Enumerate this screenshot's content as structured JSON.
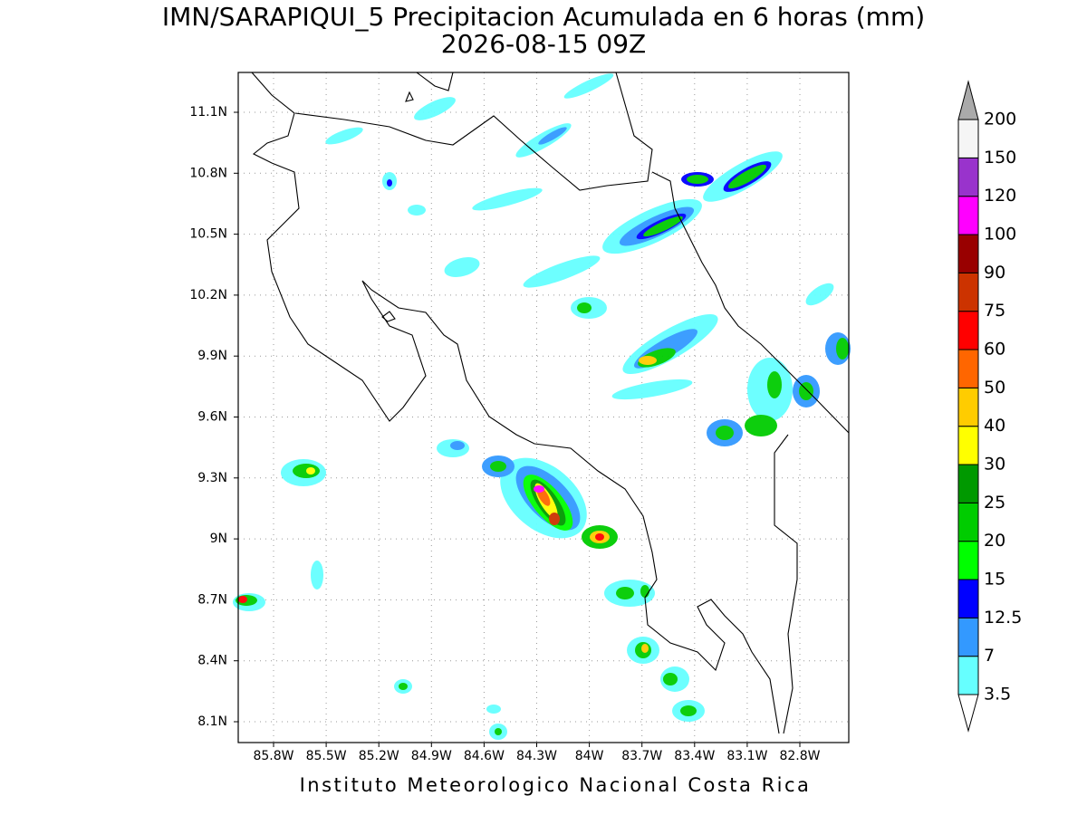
{
  "title": "IMN/SARAPIQUI_5 Precipitacion Acumulada en 6 horas (mm)",
  "subtitle": "2026-08-15 09Z",
  "map": {
    "lat_labels": [
      "11.1N",
      "10.8N",
      "10.5N",
      "10.2N",
      "9.9N",
      "9.6N",
      "9.3N",
      "9N",
      "8.7N",
      "8.4N",
      "8.1N"
    ],
    "lon_labels": [
      "85.8W",
      "85.5W",
      "85.2W",
      "84.9W",
      "84.6W",
      "84.3W",
      "84W",
      "83.7W",
      "83.4W",
      "83.1W",
      "82.8W"
    ]
  },
  "colorbar": {
    "labels": [
      "3.5",
      "7",
      "12.5",
      "15",
      "20",
      "25",
      "30",
      "40",
      "50",
      "60",
      "75",
      "90",
      "100",
      "120",
      "150",
      "200"
    ],
    "colors": [
      "#ffffff",
      "#66ffff",
      "#3399ff",
      "#0000ff",
      "#00ff00",
      "#00cc00",
      "#009900",
      "#ffff00",
      "#ffcc00",
      "#ff6600",
      "#ff0000",
      "#cc3300",
      "#990000",
      "#ff00ff",
      "#9933cc",
      "#f5f5f5",
      "#aaaaaa"
    ]
  },
  "footer": "Instituto Meteorologico Nacional Costa Rica"
}
